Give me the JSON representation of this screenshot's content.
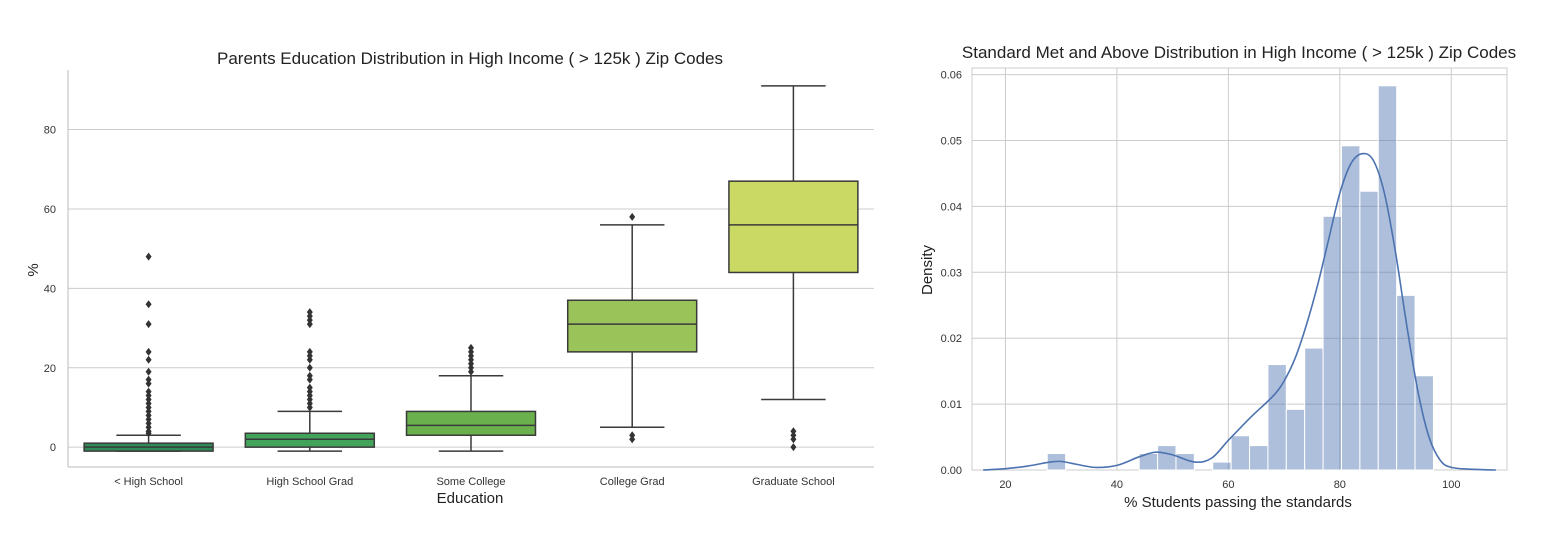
{
  "chart_data": [
    {
      "type": "box",
      "title": "Parents Education Distribution in High Income ( > 125k ) Zip Codes",
      "xlabel": "Education",
      "ylabel": "%",
      "ylim": [
        -5,
        95
      ],
      "yticks": [
        0,
        20,
        40,
        60,
        80
      ],
      "grid": "horizontal",
      "categories": [
        "< High School",
        "High School Grad",
        "Some College",
        "College Grad",
        "Graduate School"
      ],
      "colors": [
        "#2e8b57",
        "#43a35a",
        "#6ab04c",
        "#9ac45a",
        "#c9d963"
      ],
      "boxes": [
        {
          "min": -1,
          "q1": -1,
          "median": 0,
          "q3": 1,
          "max": 3,
          "outliers": [
            3.5,
            4,
            5,
            6,
            7,
            8,
            9,
            10,
            11,
            12,
            13,
            14,
            16,
            17,
            19,
            22,
            24,
            31,
            36,
            48
          ]
        },
        {
          "min": -1,
          "q1": 0,
          "median": 2,
          "q3": 3.5,
          "max": 9,
          "outliers": [
            10,
            11,
            12,
            13,
            14,
            15,
            17,
            18,
            20,
            22,
            23,
            24,
            31,
            32,
            33,
            34
          ]
        },
        {
          "min": -1,
          "q1": 3,
          "median": 5.5,
          "q3": 9,
          "max": 18,
          "outliers": [
            19,
            20,
            21,
            22,
            23,
            24,
            25
          ]
        },
        {
          "min": 5,
          "q1": 24,
          "median": 31,
          "q3": 37,
          "max": 56,
          "outliers": [
            2,
            3,
            58
          ]
        },
        {
          "min": 12,
          "q1": 44,
          "median": 56,
          "q3": 67,
          "max": 91,
          "outliers": [
            0,
            2,
            3,
            4
          ]
        }
      ]
    },
    {
      "type": "histogram",
      "title": "Standard Met and Above Distribution in High Income ( > 125k ) Zip Codes",
      "xlabel": "% Students passing the standards",
      "ylabel": "Density",
      "xlim": [
        14,
        110
      ],
      "ylim": [
        0,
        0.061
      ],
      "xticks": [
        20,
        40,
        60,
        80,
        100
      ],
      "yticks": [
        0.0,
        0.01,
        0.02,
        0.03,
        0.04,
        0.05,
        0.06
      ],
      "ytick_labels": [
        "0.00",
        "0.01",
        "0.02",
        "0.03",
        "0.04",
        "0.05",
        "0.06"
      ],
      "grid": "both",
      "color": "#4c72b0",
      "bin_width": 3.3,
      "bins": [
        {
          "x0": 27.5,
          "density": 0.0025
        },
        {
          "x0": 44.0,
          "density": 0.0025
        },
        {
          "x0": 47.3,
          "density": 0.0037
        },
        {
          "x0": 50.6,
          "density": 0.0025
        },
        {
          "x0": 57.2,
          "density": 0.0012
        },
        {
          "x0": 60.5,
          "density": 0.0052
        },
        {
          "x0": 63.8,
          "density": 0.0037
        },
        {
          "x0": 67.1,
          "density": 0.016
        },
        {
          "x0": 70.4,
          "density": 0.0092
        },
        {
          "x0": 73.7,
          "density": 0.0185
        },
        {
          "x0": 77.0,
          "density": 0.0385
        },
        {
          "x0": 80.3,
          "density": 0.0492
        },
        {
          "x0": 83.6,
          "density": 0.0423
        },
        {
          "x0": 86.9,
          "density": 0.0583
        },
        {
          "x0": 90.2,
          "density": 0.0265
        },
        {
          "x0": 93.5,
          "density": 0.0143
        }
      ],
      "kde": {
        "x": [
          16,
          20,
          24,
          28,
          30,
          32,
          36,
          40,
          44,
          47,
          50,
          54,
          57,
          60,
          64,
          68,
          70,
          72,
          74,
          76,
          78,
          80,
          82,
          84,
          86,
          88,
          90,
          92,
          94,
          96,
          98,
          100,
          104,
          108
        ],
        "y": [
          0.0,
          0.0002,
          0.0006,
          0.0012,
          0.0013,
          0.001,
          0.0004,
          0.0007,
          0.002,
          0.0027,
          0.0023,
          0.0012,
          0.0018,
          0.0045,
          0.008,
          0.0112,
          0.0135,
          0.017,
          0.022,
          0.028,
          0.035,
          0.042,
          0.0465,
          0.048,
          0.047,
          0.042,
          0.033,
          0.022,
          0.012,
          0.005,
          0.0015,
          0.0004,
          0.0001,
          0.0
        ]
      }
    }
  ]
}
